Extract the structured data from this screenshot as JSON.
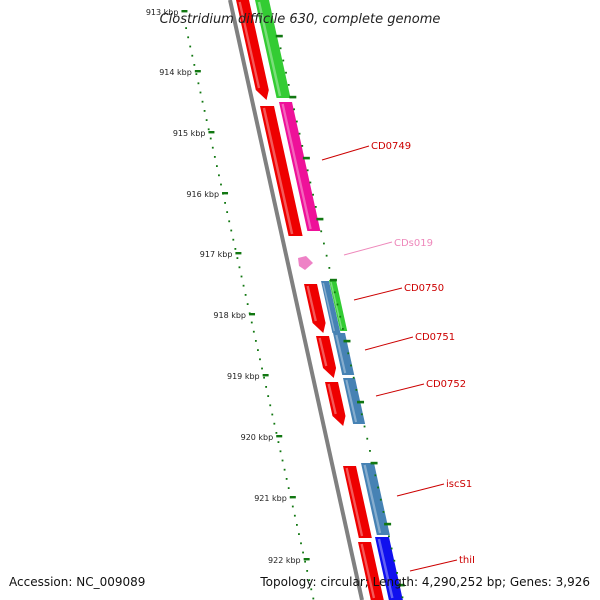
{
  "title": "Clostridium difficile 630, complete genome",
  "accession": "Accession: NC_009089",
  "summary": "Topology: circular; Length: 4,290,252 bp; Genes: 3,926",
  "scale_labels": [
    "913 kbp",
    "914 kbp",
    "915 kbp",
    "916 kbp",
    "917 kbp",
    "918 kbp",
    "919 kbp",
    "920 kbp",
    "921 kbp",
    "922 kbp"
  ],
  "colors": {
    "backbone": "#808080",
    "red": "#ee0000",
    "green": "#33cc33",
    "magenta": "#ee1199",
    "steel": "#4682b4",
    "blue": "#1010ee",
    "pink": "#ee82c6",
    "ticks": "#117711",
    "label_red": "#cc0000",
    "label_pink": "#ee88bb"
  },
  "gene_labels": [
    {
      "text": "CD0749",
      "color": "#cc0000"
    },
    {
      "text": "CDs019",
      "color": "#ee88bb"
    },
    {
      "text": "CD0750",
      "color": "#cc0000"
    },
    {
      "text": "CD0751",
      "color": "#cc0000"
    },
    {
      "text": "CD0752",
      "color": "#cc0000"
    },
    {
      "text": "iscS1",
      "color": "#cc0000"
    },
    {
      "text": "thiI",
      "color": "#cc0000"
    }
  ]
}
